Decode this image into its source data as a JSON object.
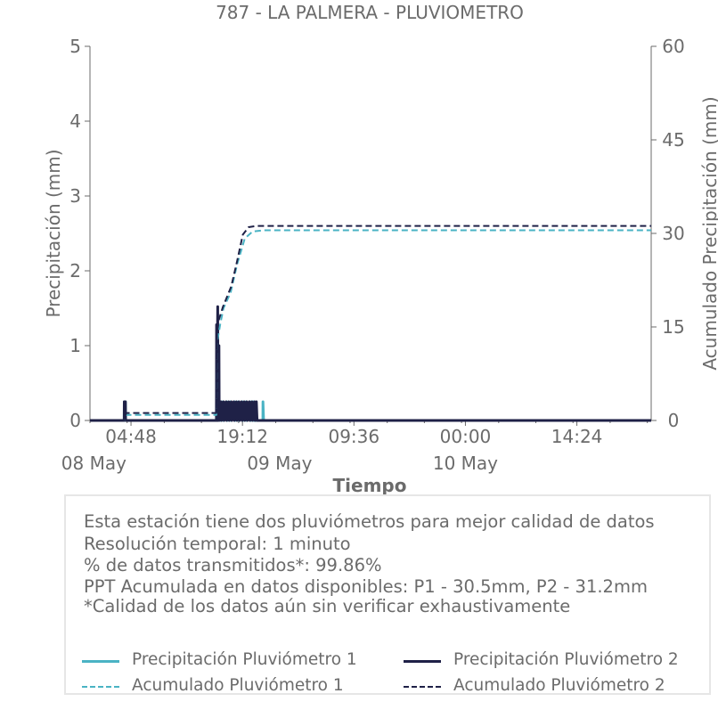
{
  "chart_data": {
    "type": "line",
    "title": "787 - LA PALMERA - PLUVIOMETRO",
    "xlabel": "Tiempo",
    "ylabel": "Precipitación (mm)",
    "y2label": "Acumulado Precipitación (mm)",
    "xlim": [
      "2025-05-07 23:30",
      "2025-05-11 00:00"
    ],
    "ylim": [
      0,
      5
    ],
    "y2lim": [
      0,
      60
    ],
    "yticks": [
      "0",
      "1",
      "2",
      "3",
      "4",
      "5"
    ],
    "y2ticks": [
      "0",
      "15",
      "30",
      "45",
      "60"
    ],
    "xticks": [
      {
        "x": "2025-05-08 04:48",
        "label": "04:48"
      },
      {
        "x": "2025-05-08 19:12",
        "label": "19:12"
      },
      {
        "x": "2025-05-09 09:36",
        "label": "09:36"
      },
      {
        "x": "2025-05-10 00:00",
        "label": "00:00"
      },
      {
        "x": "2025-05-10 14:24",
        "label": "14:24"
      }
    ],
    "date_labels": [
      {
        "x": "2025-05-08 00:00",
        "label": "08 May"
      },
      {
        "x": "2025-05-09 00:00",
        "label": "09 May"
      },
      {
        "x": "2025-05-10 00:00",
        "label": "10 May"
      }
    ],
    "series": [
      {
        "name": "Precipitación Pluviómetro 1",
        "style": "solid",
        "axis": "left",
        "color": "#4ab3c4",
        "points": [
          [
            "2025-05-07 23:30",
            0
          ],
          [
            "2025-05-08 03:55",
            0
          ],
          [
            "2025-05-08 03:56",
            0.25
          ],
          [
            "2025-05-08 04:05",
            0.25
          ],
          [
            "2025-05-08 04:06",
            0
          ],
          [
            "2025-05-08 15:55",
            0
          ],
          [
            "2025-05-08 15:56",
            1.25
          ],
          [
            "2025-05-08 15:58",
            0
          ],
          [
            "2025-05-08 16:00",
            0.5
          ],
          [
            "2025-05-08 16:02",
            0
          ],
          [
            "2025-05-08 16:20",
            0.25
          ],
          [
            "2025-05-08 16:25",
            0
          ],
          [
            "2025-05-08 16:40",
            0.25
          ],
          [
            "2025-05-08 16:45",
            0
          ],
          [
            "2025-05-08 17:10",
            0.25
          ],
          [
            "2025-05-08 17:15",
            0
          ],
          [
            "2025-05-08 17:40",
            0.25
          ],
          [
            "2025-05-08 17:45",
            0
          ],
          [
            "2025-05-08 18:10",
            0.25
          ],
          [
            "2025-05-08 18:15",
            0
          ],
          [
            "2025-05-08 18:40",
            0.25
          ],
          [
            "2025-05-08 18:45",
            0
          ],
          [
            "2025-05-08 19:10",
            0.25
          ],
          [
            "2025-05-08 19:15",
            0
          ],
          [
            "2025-05-08 19:40",
            0.25
          ],
          [
            "2025-05-08 19:45",
            0
          ],
          [
            "2025-05-08 20:10",
            0.25
          ],
          [
            "2025-05-08 20:15",
            0
          ],
          [
            "2025-05-08 20:35",
            0.25
          ],
          [
            "2025-05-08 20:40",
            0
          ],
          [
            "2025-05-08 21:50",
            0
          ],
          [
            "2025-05-08 21:51",
            0.25
          ],
          [
            "2025-05-08 21:56",
            0
          ],
          [
            "2025-05-11 00:00",
            0
          ]
        ]
      },
      {
        "name": "Precipitación Pluviómetro 2",
        "style": "solid",
        "axis": "left",
        "color": "#1f2147",
        "points": [
          [
            "2025-05-07 23:30",
            0
          ],
          [
            "2025-05-08 03:55",
            0
          ],
          [
            "2025-05-08 03:56",
            0.25
          ],
          [
            "2025-05-08 04:05",
            0.25
          ],
          [
            "2025-05-08 04:06",
            0
          ],
          [
            "2025-05-08 15:50",
            0
          ],
          [
            "2025-05-08 15:51",
            1.28
          ],
          [
            "2025-05-08 15:53",
            0
          ],
          [
            "2025-05-08 16:00",
            1.52
          ],
          [
            "2025-05-08 16:02",
            0
          ],
          [
            "2025-05-08 16:10",
            1.0
          ],
          [
            "2025-05-08 16:12",
            0
          ],
          [
            "2025-05-08 16:25",
            0.25
          ],
          [
            "2025-05-08 16:30",
            0
          ],
          [
            "2025-05-08 16:45",
            0.25
          ],
          [
            "2025-05-08 16:50",
            0
          ],
          [
            "2025-05-08 17:05",
            0.25
          ],
          [
            "2025-05-08 17:10",
            0
          ],
          [
            "2025-05-08 17:25",
            0.25
          ],
          [
            "2025-05-08 17:30",
            0
          ],
          [
            "2025-05-08 17:45",
            0.25
          ],
          [
            "2025-05-08 17:50",
            0
          ],
          [
            "2025-05-08 18:05",
            0.25
          ],
          [
            "2025-05-08 18:10",
            0
          ],
          [
            "2025-05-08 18:25",
            0.25
          ],
          [
            "2025-05-08 18:30",
            0
          ],
          [
            "2025-05-08 18:45",
            0.25
          ],
          [
            "2025-05-08 18:50",
            0
          ],
          [
            "2025-05-08 19:05",
            0.25
          ],
          [
            "2025-05-08 19:10",
            0
          ],
          [
            "2025-05-08 19:25",
            0.25
          ],
          [
            "2025-05-08 19:30",
            0
          ],
          [
            "2025-05-08 19:45",
            0.25
          ],
          [
            "2025-05-08 19:50",
            0
          ],
          [
            "2025-05-08 20:05",
            0.25
          ],
          [
            "2025-05-08 20:10",
            0
          ],
          [
            "2025-05-08 20:25",
            0.25
          ],
          [
            "2025-05-08 20:30",
            0
          ],
          [
            "2025-05-08 20:45",
            0.25
          ],
          [
            "2025-05-08 20:50",
            0
          ],
          [
            "2025-05-08 21:00",
            0.25
          ],
          [
            "2025-05-08 21:05",
            0
          ],
          [
            "2025-05-11 00:00",
            0
          ]
        ]
      },
      {
        "name": "Acumulado Pluviómetro 1",
        "style": "dashed",
        "axis": "right",
        "color": "#4ab3c4",
        "points": [
          [
            "2025-05-07 23:30",
            0
          ],
          [
            "2025-05-08 03:55",
            0
          ],
          [
            "2025-05-08 04:10",
            0.9
          ],
          [
            "2025-05-08 15:50",
            0.9
          ],
          [
            "2025-05-08 15:55",
            12.5
          ],
          [
            "2025-05-08 16:20",
            15.5
          ],
          [
            "2025-05-08 16:45",
            18.0
          ],
          [
            "2025-05-08 17:40",
            20.5
          ],
          [
            "2025-05-08 18:30",
            25.0
          ],
          [
            "2025-05-08 19:30",
            29.2
          ],
          [
            "2025-05-08 20:30",
            30.3
          ],
          [
            "2025-05-08 22:00",
            30.5
          ],
          [
            "2025-05-11 00:00",
            30.5
          ]
        ]
      },
      {
        "name": "Acumulado Pluviómetro 2",
        "style": "dashed",
        "axis": "right",
        "color": "#1f2147",
        "points": [
          [
            "2025-05-07 23:30",
            0
          ],
          [
            "2025-05-08 03:55",
            0
          ],
          [
            "2025-05-08 04:10",
            1.2
          ],
          [
            "2025-05-08 15:50",
            1.2
          ],
          [
            "2025-05-08 15:55",
            15.5
          ],
          [
            "2025-05-08 16:10",
            16.2
          ],
          [
            "2025-05-08 16:40",
            18.2
          ],
          [
            "2025-05-08 17:45",
            21.5
          ],
          [
            "2025-05-08 18:30",
            25.5
          ],
          [
            "2025-05-08 19:15",
            29.8
          ],
          [
            "2025-05-08 20:00",
            31.0
          ],
          [
            "2025-05-08 21:00",
            31.2
          ],
          [
            "2025-05-11 00:00",
            31.2
          ]
        ]
      }
    ]
  },
  "info": {
    "line1": "Esta estación tiene dos pluviómetros para mejor calidad de datos",
    "line2": "Resolución temporal: 1 minuto",
    "line3": "% de datos transmitidos*: 99.86%",
    "line4": "PPT Acumulada en datos disponibles: P1 - 30.5mm, P2 - 31.2mm",
    "line5": "*Calidad de los datos aún sin verificar exhaustivamente"
  },
  "legend": {
    "p1": "Precipitación Pluviómetro 1",
    "p2": "Precipitación Pluviómetro 2",
    "a1": "Acumulado Pluviómetro 1",
    "a2": "Acumulado Pluviómetro 2"
  },
  "colors": {
    "p1": "#4ab3c4",
    "p2": "#1f2147",
    "text": "#6b6b6b",
    "axis": "#6b6b6b",
    "box_border": "#e6e6e6"
  }
}
